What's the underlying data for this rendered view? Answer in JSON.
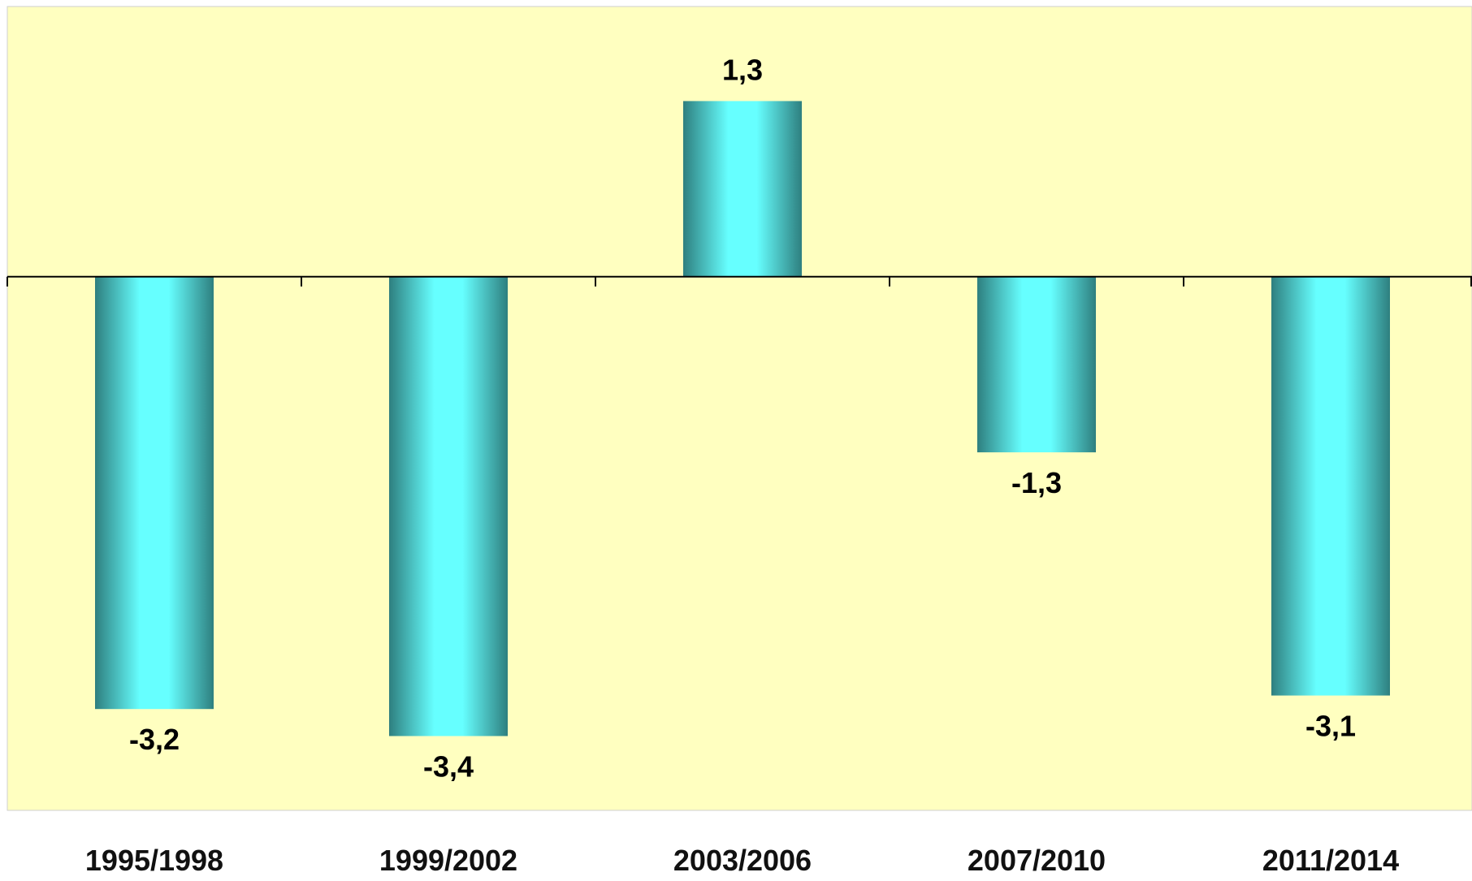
{
  "chart_data": {
    "type": "bar",
    "categories": [
      "1995/1998",
      "1999/2002",
      "2003/2006",
      "2007/2010",
      "2011/2014"
    ],
    "values": [
      -3.2,
      -3.4,
      1.3,
      -1.3,
      -3.1
    ],
    "data_labels": [
      "-3,2",
      "-3,4",
      "1,3",
      "-1,3",
      "-3,1"
    ],
    "title": "",
    "xlabel": "",
    "ylabel": "",
    "ylim": [
      -3.95,
      2.0
    ],
    "grid": false,
    "legend": "none",
    "plot_background": "#FFFFC0",
    "bar_color_edge": "#2E7F7F",
    "bar_color_center": "#66FFFF"
  }
}
